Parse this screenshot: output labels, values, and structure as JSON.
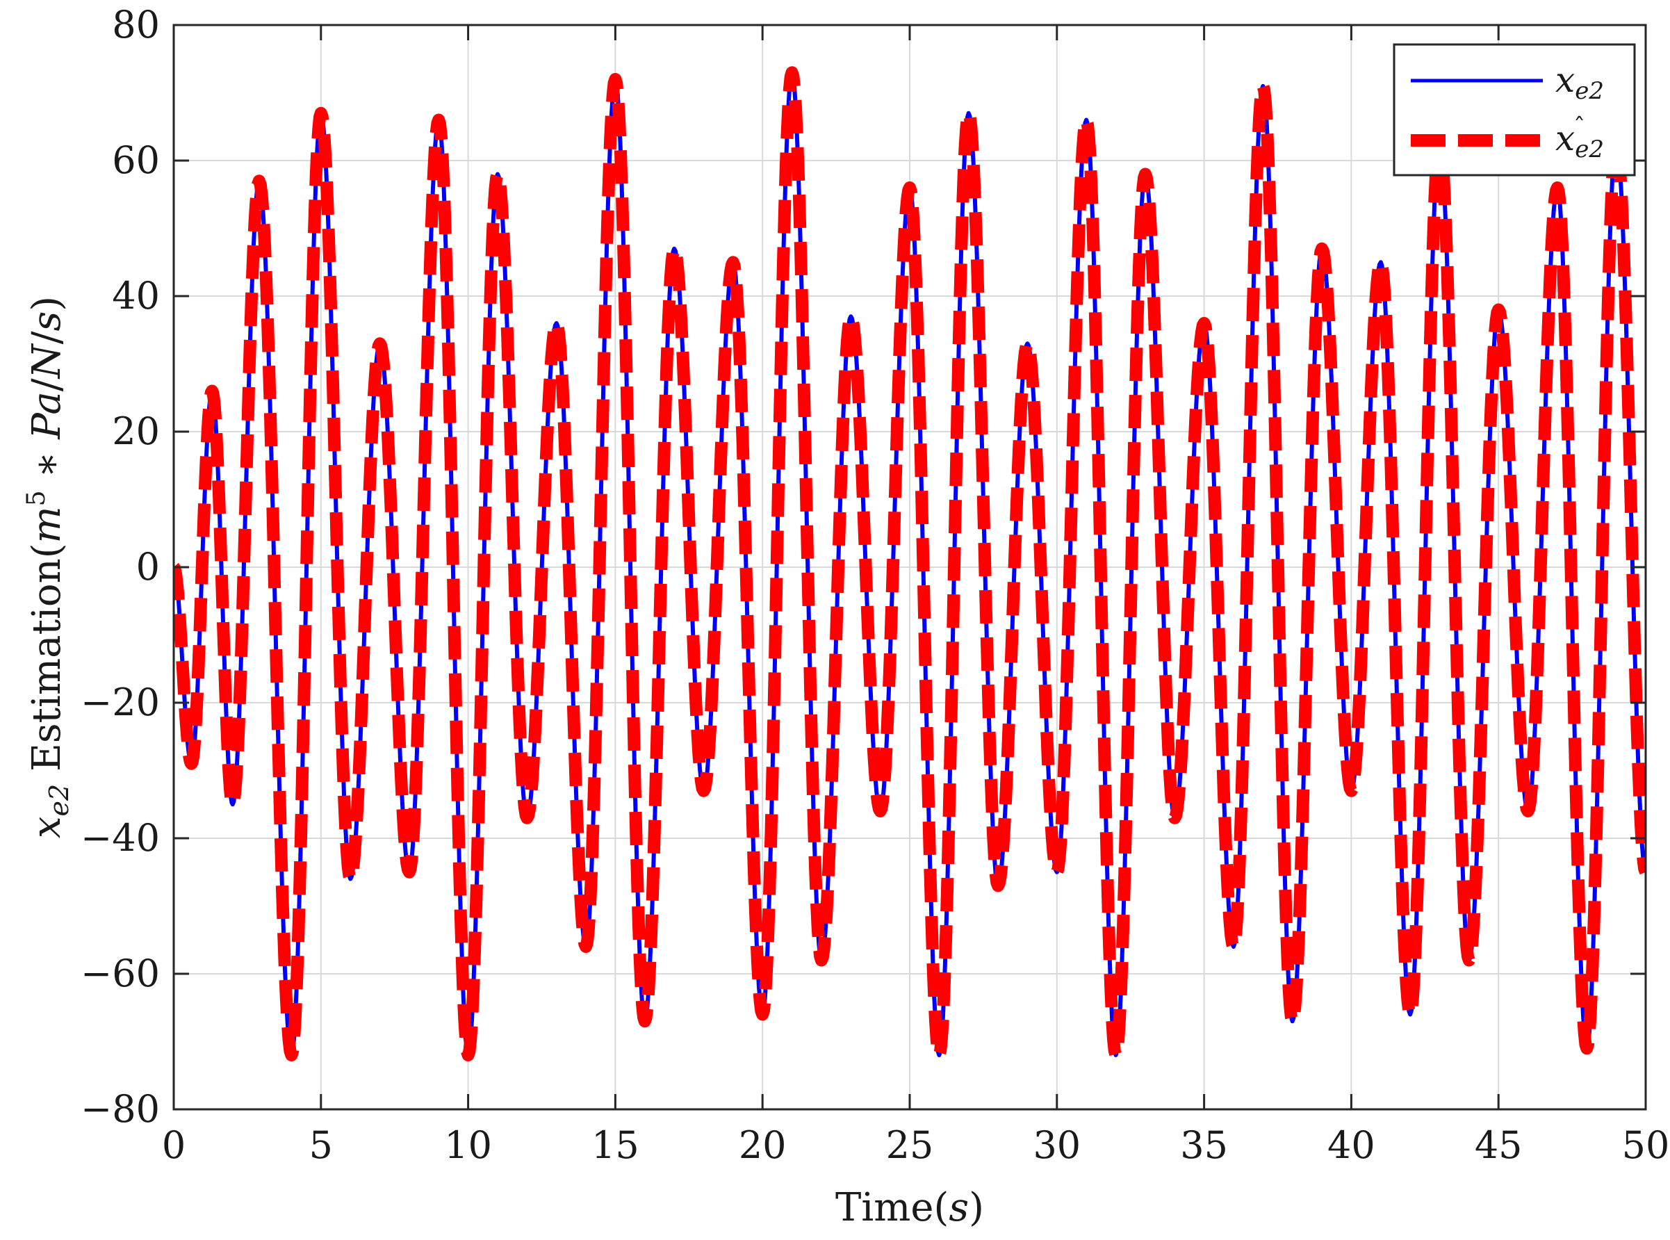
{
  "chart_data": {
    "type": "line",
    "title": "",
    "xlabel": "Time(s)",
    "ylabel": "x_e2 Estimation(m^5 * Pa/N/s)",
    "xlim": [
      0,
      50
    ],
    "ylim": [
      -80,
      80
    ],
    "xticks": [
      "0",
      "5",
      "10",
      "15",
      "20",
      "25",
      "30",
      "35",
      "40",
      "45",
      "50"
    ],
    "yticks": [
      "80",
      "60",
      "40",
      "20",
      "0",
      "−20",
      "−40",
      "−60",
      "−80"
    ],
    "grid": true,
    "legend_position": "top-right",
    "series": [
      {
        "name": "x_e2",
        "color": "#0000ff",
        "style": "solid",
        "x": [
          0,
          0.6,
          1.3,
          2.0,
          2.9,
          4.0,
          5.0,
          6.0,
          7.0,
          8.0,
          9.0,
          10.0,
          11.0,
          12.0,
          13.0,
          14.0,
          15.0,
          16.0,
          17.0,
          18.0,
          19.0,
          20.0,
          21.0,
          22.0,
          23.0,
          24.0,
          25.0,
          26.0,
          27.0,
          28.0,
          29.0,
          30.0,
          31.0,
          32.0,
          33.0,
          34.0,
          35.0,
          36.0,
          37.0,
          38.0,
          39.0,
          40.0,
          41.0,
          42.0,
          43.0,
          44.0,
          45.0,
          46.0,
          47.0,
          48.0,
          49.0,
          50.0
        ],
        "y": [
          0,
          -29,
          26,
          -35,
          57,
          -72,
          67,
          -46,
          33,
          -45,
          66,
          -72,
          58,
          -37,
          36,
          -56,
          72,
          -67,
          47,
          -33,
          45,
          -66,
          73,
          -58,
          37,
          -36,
          56,
          -72,
          67,
          -47,
          33,
          -45,
          66,
          -72,
          58,
          -37,
          36,
          -56,
          71,
          -67,
          47,
          -33,
          45,
          -66,
          63,
          -58,
          38,
          -36,
          56,
          -71,
          63,
          -45
        ]
      },
      {
        "name": "x_e2 hat",
        "color": "#ff0000",
        "style": "dashed",
        "x": [
          0,
          0.6,
          1.3,
          2.0,
          2.9,
          4.0,
          5.0,
          6.0,
          7.0,
          8.0,
          9.0,
          10.0,
          11.0,
          12.0,
          13.0,
          14.0,
          15.0,
          16.0,
          17.0,
          18.0,
          19.0,
          20.0,
          21.0,
          22.0,
          23.0,
          24.0,
          25.0,
          26.0,
          27.0,
          28.0,
          29.0,
          30.0,
          31.0,
          32.0,
          33.0,
          34.0,
          35.0,
          36.0,
          37.0,
          38.0,
          39.0,
          40.0,
          41.0,
          42.0,
          43.0,
          44.0,
          45.0,
          46.0,
          47.0,
          48.0,
          49.0,
          50.0
        ],
        "y": [
          0,
          -29,
          26,
          -35,
          57,
          -72,
          67,
          -46,
          33,
          -45,
          66,
          -72,
          58,
          -37,
          36,
          -56,
          72,
          -67,
          47,
          -33,
          45,
          -66,
          73,
          -58,
          37,
          -36,
          56,
          -72,
          67,
          -47,
          33,
          -45,
          66,
          -72,
          58,
          -37,
          36,
          -56,
          71,
          -67,
          47,
          -33,
          45,
          -66,
          63,
          -58,
          38,
          -36,
          56,
          -71,
          63,
          -45
        ]
      }
    ]
  }
}
